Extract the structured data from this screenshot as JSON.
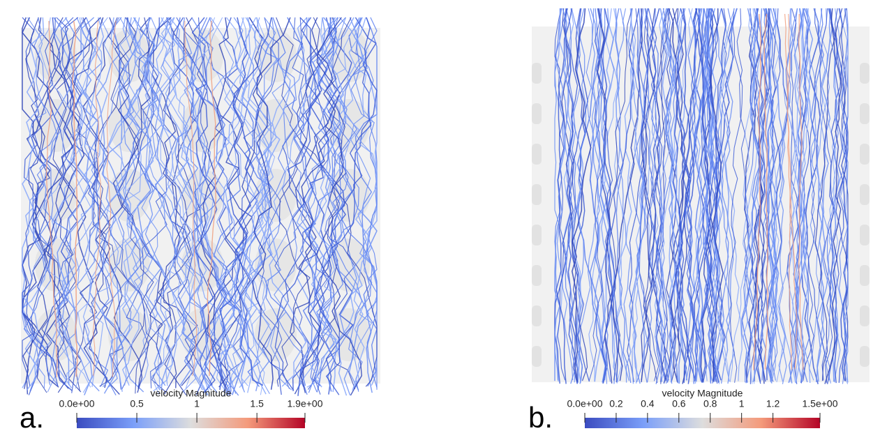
{
  "panels": [
    {
      "label": "a.",
      "colorbar": {
        "title": "velocity Magnitude",
        "range": [
          0,
          1.9
        ],
        "ticks": [
          {
            "value": 0,
            "label": "0.0e+00"
          },
          0.5,
          1,
          1.5,
          {
            "value": 1.9,
            "label": "1.9e+00"
          }
        ]
      }
    },
    {
      "label": "b.",
      "colorbar": {
        "title": "velocity Magnitude",
        "range": [
          0,
          1.5
        ],
        "ticks": [
          {
            "value": 0,
            "label": "0.0e+00"
          },
          0.2,
          0.4,
          0.6,
          0.8,
          1,
          1.2,
          {
            "value": 1.5,
            "label": "1.5e+00"
          }
        ]
      }
    }
  ]
}
